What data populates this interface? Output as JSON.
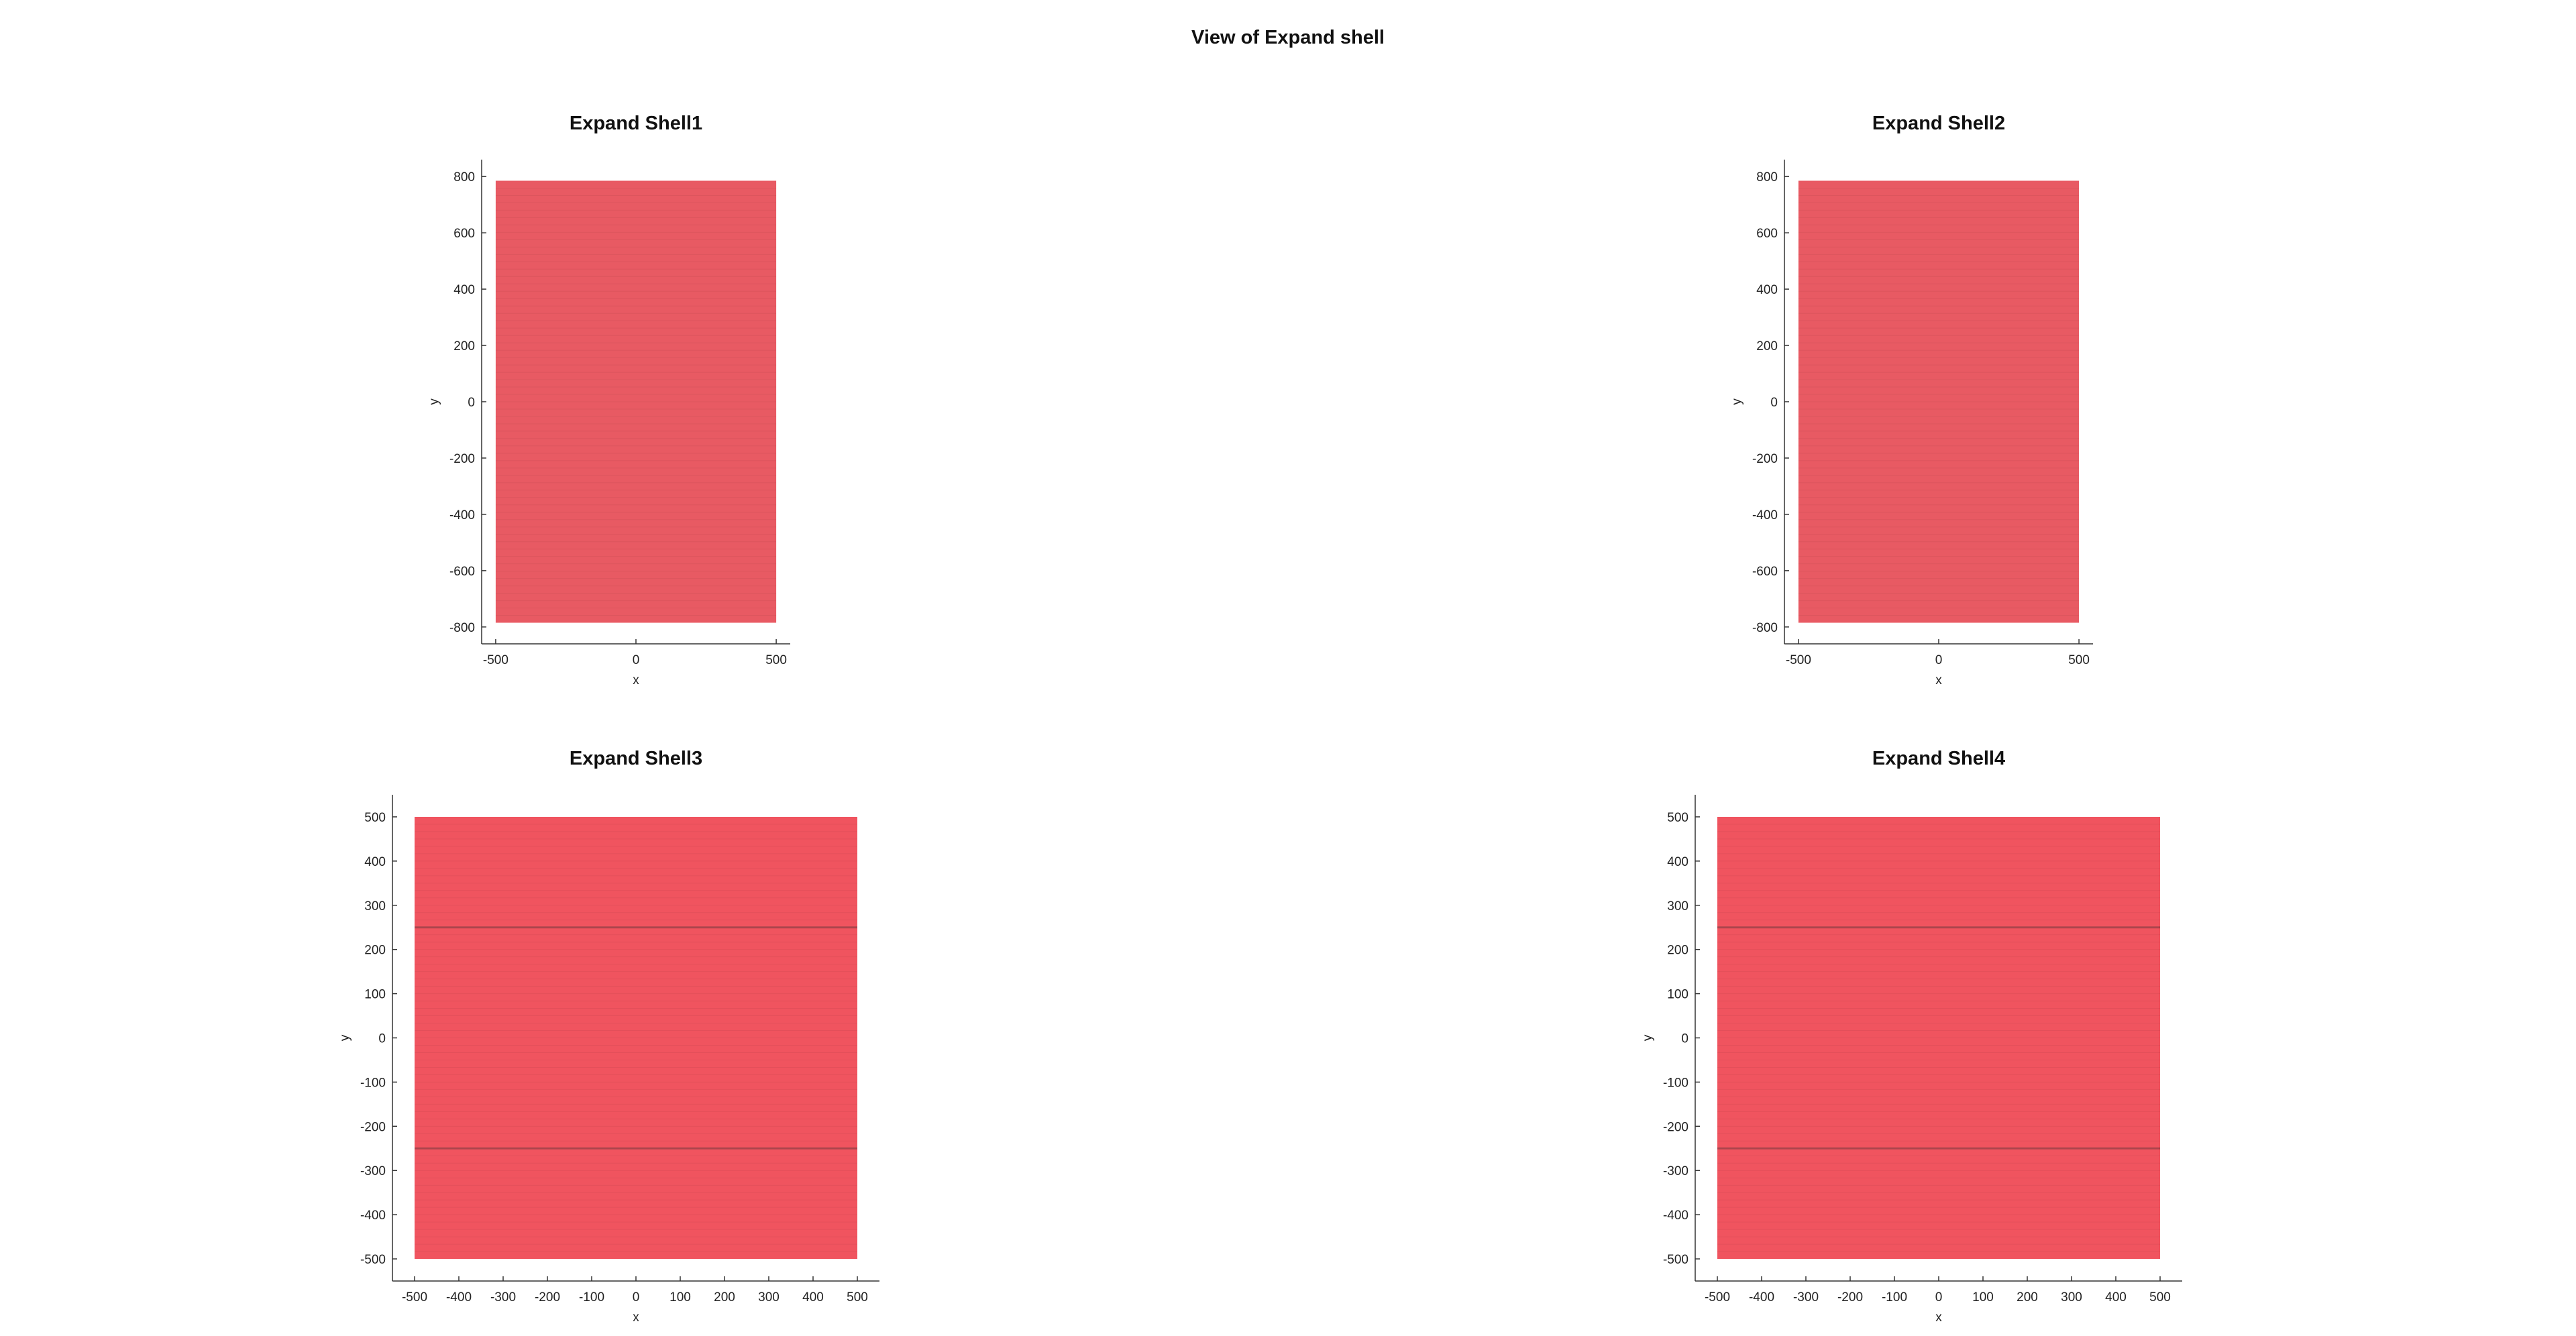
{
  "figure": {
    "title": "View of Expand shell"
  },
  "chart_data": [
    {
      "type": "area",
      "title": "Expand Shell1",
      "xlabel": "x",
      "ylabel": "y",
      "xlim": [
        -550,
        550
      ],
      "ylim": [
        -860,
        860
      ],
      "xticks": [
        -500,
        0,
        500
      ],
      "yticks": [
        -800,
        -600,
        -400,
        -200,
        0,
        200,
        400,
        600,
        800
      ],
      "x": [
        -500,
        500
      ],
      "y": [
        -785,
        785
      ],
      "fill_color": "#e85a63",
      "internal_lines_y": []
    },
    {
      "type": "area",
      "title": "Expand Shell2",
      "xlabel": "x",
      "ylabel": "y",
      "xlim": [
        -550,
        550
      ],
      "ylim": [
        -860,
        860
      ],
      "xticks": [
        -500,
        0,
        500
      ],
      "yticks": [
        -800,
        -600,
        -400,
        -200,
        0,
        200,
        400,
        600,
        800
      ],
      "x": [
        -500,
        500
      ],
      "y": [
        -785,
        785
      ],
      "fill_color": "#e85a63",
      "internal_lines_y": []
    },
    {
      "type": "area",
      "title": "Expand Shell3",
      "xlabel": "x",
      "ylabel": "y",
      "xlim": [
        -550,
        550
      ],
      "ylim": [
        -550,
        550
      ],
      "xticks": [
        -500,
        -400,
        -300,
        -200,
        -100,
        0,
        100,
        200,
        300,
        400,
        500
      ],
      "yticks": [
        -500,
        -400,
        -300,
        -200,
        -100,
        0,
        100,
        200,
        300,
        400,
        500
      ],
      "x": [
        -500,
        500
      ],
      "y": [
        -500,
        500
      ],
      "fill_color": "#f0545f",
      "internal_lines_y": [
        -250,
        250
      ]
    },
    {
      "type": "area",
      "title": "Expand Shell4",
      "xlabel": "x",
      "ylabel": "y",
      "xlim": [
        -550,
        550
      ],
      "ylim": [
        -550,
        550
      ],
      "xticks": [
        -500,
        -400,
        -300,
        -200,
        -100,
        0,
        100,
        200,
        300,
        400,
        500
      ],
      "yticks": [
        -500,
        -400,
        -300,
        -200,
        -100,
        0,
        100,
        200,
        300,
        400,
        500
      ],
      "x": [
        -500,
        500
      ],
      "y": [
        -500,
        500
      ],
      "fill_color": "#f0545f",
      "internal_lines_y": [
        -250,
        250
      ]
    }
  ]
}
